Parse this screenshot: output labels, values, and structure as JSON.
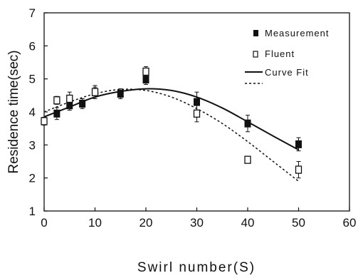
{
  "chart_data": {
    "type": "scatter",
    "xlabel": "Swirl number(S)",
    "ylabel": "Residence time(sec)",
    "xlim": [
      0,
      60
    ],
    "ylim": [
      1,
      7
    ],
    "xticks": [
      "0",
      "10",
      "20",
      "30",
      "40",
      "50",
      "60"
    ],
    "yticks": [
      "1",
      "2",
      "3",
      "4",
      "5",
      "6",
      "7"
    ],
    "grid": false,
    "legend_position": "top-right",
    "series": [
      {
        "name": "Measurement",
        "marker": "filled-square",
        "color": "#111111",
        "points": [
          {
            "x": 2.5,
            "y": 3.95,
            "err": 0.18
          },
          {
            "x": 5,
            "y": 4.2,
            "err": 0.15
          },
          {
            "x": 7.5,
            "y": 4.25,
            "err": 0.15
          },
          {
            "x": 10,
            "y": 4.6,
            "err": 0.15
          },
          {
            "x": 15,
            "y": 4.55,
            "err": 0.15
          },
          {
            "x": 20,
            "y": 4.98,
            "err": 0.15
          },
          {
            "x": 30,
            "y": 4.3,
            "err": 0.3
          },
          {
            "x": 40,
            "y": 3.65,
            "err": 0.25
          },
          {
            "x": 50,
            "y": 3.02,
            "err": 0.2
          }
        ]
      },
      {
        "name": "Fluent",
        "marker": "open-square",
        "color": "#111111",
        "points": [
          {
            "x": 0,
            "y": 3.72,
            "err": 0.12
          },
          {
            "x": 2.5,
            "y": 4.35,
            "err": 0.12
          },
          {
            "x": 5,
            "y": 4.4,
            "err": 0.2
          },
          {
            "x": 10,
            "y": 4.6,
            "err": 0.2
          },
          {
            "x": 20,
            "y": 5.22,
            "err": 0.15
          },
          {
            "x": 30,
            "y": 3.95,
            "err": 0.25
          },
          {
            "x": 40,
            "y": 2.55,
            "err": 0.1
          },
          {
            "x": 50,
            "y": 2.25,
            "err": 0.25
          }
        ]
      }
    ],
    "curves": [
      {
        "name": "Curve Fit",
        "style": "solid",
        "points": [
          {
            "x": 0,
            "y": 3.85
          },
          {
            "x": 5,
            "y": 4.15
          },
          {
            "x": 10,
            "y": 4.45
          },
          {
            "x": 15,
            "y": 4.62
          },
          {
            "x": 20,
            "y": 4.7
          },
          {
            "x": 25,
            "y": 4.65
          },
          {
            "x": 30,
            "y": 4.45
          },
          {
            "x": 35,
            "y": 4.12
          },
          {
            "x": 40,
            "y": 3.7
          },
          {
            "x": 45,
            "y": 3.27
          },
          {
            "x": 50,
            "y": 2.85
          }
        ]
      },
      {
        "name": "",
        "style": "dashed",
        "points": [
          {
            "x": 0,
            "y": 4.0
          },
          {
            "x": 5,
            "y": 4.3
          },
          {
            "x": 10,
            "y": 4.55
          },
          {
            "x": 15,
            "y": 4.68
          },
          {
            "x": 20,
            "y": 4.65
          },
          {
            "x": 25,
            "y": 4.45
          },
          {
            "x": 30,
            "y": 4.1
          },
          {
            "x": 35,
            "y": 3.65
          },
          {
            "x": 40,
            "y": 3.1
          },
          {
            "x": 45,
            "y": 2.5
          },
          {
            "x": 50,
            "y": 1.9
          }
        ]
      }
    ]
  }
}
